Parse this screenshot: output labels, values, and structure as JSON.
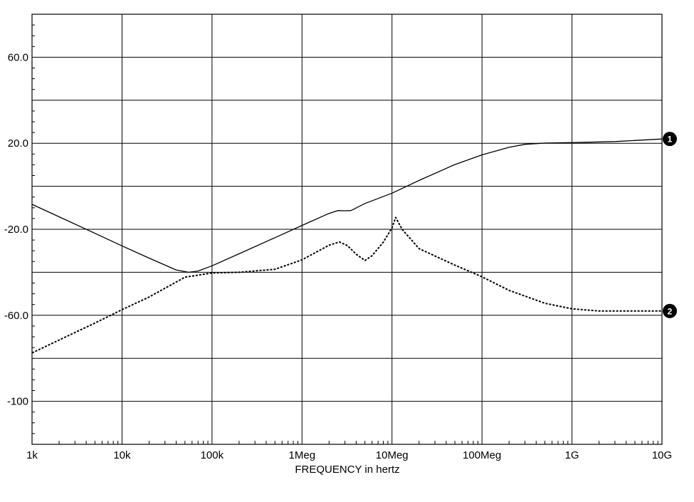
{
  "chart_data": {
    "type": "line",
    "title": "",
    "xlabel": "FREQUENCY in hertz",
    "ylabel": "",
    "x_scale": "log",
    "xlim": [
      1000,
      10000000000
    ],
    "ylim": [
      -120,
      80
    ],
    "grid": true,
    "x_ticks": [
      {
        "value": 1000,
        "label": "1k"
      },
      {
        "value": 10000,
        "label": "10k"
      },
      {
        "value": 100000,
        "label": "100k"
      },
      {
        "value": 1000000,
        "label": "1Meg"
      },
      {
        "value": 10000000,
        "label": "10Meg"
      },
      {
        "value": 100000000,
        "label": "100Meg"
      },
      {
        "value": 1000000000,
        "label": "1G"
      },
      {
        "value": 10000000000,
        "label": "10G"
      }
    ],
    "y_ticks": [
      {
        "value": 60,
        "label": "60.0"
      },
      {
        "value": 20,
        "label": "20.0"
      },
      {
        "value": -20,
        "label": "-20.0"
      },
      {
        "value": -60,
        "label": "-60.0"
      },
      {
        "value": -100,
        "label": "-100"
      }
    ],
    "y_gridlines": [
      80,
      60,
      40,
      20,
      0,
      -20,
      -40,
      -60,
      -80,
      -100,
      -120
    ],
    "series": [
      {
        "marker": "1",
        "style": "solid",
        "color": "#000000",
        "x": [
          1000,
          2000,
          5000,
          10000,
          20000,
          40000,
          55000,
          70000,
          100000,
          200000,
          500000,
          1000000,
          2000000,
          2500000,
          3000000,
          3500000,
          5000000,
          10000000,
          20000000,
          50000000,
          100000000,
          200000000,
          300000000,
          500000000,
          1000000000,
          3000000000,
          10000000000
        ],
        "y": [
          -8.4,
          -14.2,
          -21.9,
          -27.7,
          -33.4,
          -38.9,
          -40.0,
          -39.4,
          -37.0,
          -31.4,
          -23.9,
          -18.2,
          -12.6,
          -11.3,
          -11.4,
          -11.3,
          -8.0,
          -3.2,
          2.7,
          10.1,
          14.6,
          18.1,
          19.5,
          20.1,
          20.3,
          20.8,
          22.0
        ]
      },
      {
        "marker": "2",
        "style": "dashed",
        "color": "#000000",
        "x": [
          1000,
          2000,
          5000,
          10000,
          20000,
          50000,
          100000,
          200000,
          500000,
          1000000,
          2000000,
          2600000,
          3200000,
          4000000,
          5000000,
          6000000,
          8000000,
          10000000,
          11000000,
          13000000,
          20000000,
          50000000,
          100000000,
          200000000,
          500000000,
          1000000000,
          2000000000,
          10000000000
        ],
        "y": [
          -77.5,
          -71.5,
          -63.6,
          -57.4,
          -51.5,
          -42.3,
          -40.3,
          -40.0,
          -38.6,
          -34.2,
          -27.4,
          -25.9,
          -27.6,
          -31.6,
          -34.5,
          -32.3,
          -26.0,
          -19.3,
          -14.5,
          -20.1,
          -29.0,
          -36.7,
          -42.1,
          -48.4,
          -54.4,
          -57.0,
          -58.0,
          -58.0
        ]
      }
    ]
  }
}
